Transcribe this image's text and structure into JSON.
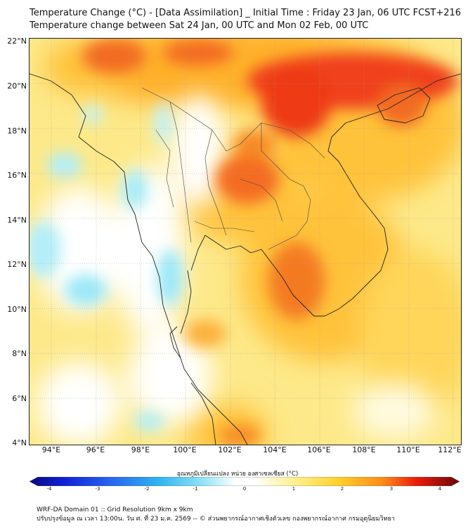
{
  "header": {
    "title_line1": "Temperature Change (°C) - [Data Assimilation] _ Initial Time : Friday 23 Jan, 06 UTC FCST+216",
    "title_line2": "Temperature change between Sat 24 Jan, 00 UTC and Mon 02 Feb, 00 UTC"
  },
  "map": {
    "lat_labels": [
      "22°N",
      "20°N",
      "18°N",
      "16°N",
      "14°N",
      "12°N",
      "10°N",
      "8°N",
      "6°N",
      "4°N"
    ],
    "lon_labels": [
      "94°E",
      "96°E",
      "98°E",
      "100°E",
      "102°E",
      "104°E",
      "106°E",
      "108°E",
      "110°E",
      "112°E"
    ],
    "colors": {
      "background": "#fdf6c8",
      "cool": "#7fe0f5",
      "neutral": "#ffffff",
      "warm": "#ffd23c",
      "hot": "#ff8a1e",
      "very_hot": "#e81c0c",
      "border": "#333333"
    }
  },
  "colorbar": {
    "title": "อุณหภูมิเปลี่ยนแปลง หน่วย องศาเซลเซียส (°C)",
    "ticks": [
      "-4",
      "-3",
      "-2",
      "-1",
      "0",
      "1",
      "2",
      "3",
      "4"
    ],
    "range": [
      -4,
      4
    ]
  },
  "footer": {
    "line1": "WRF-DA Domain 01 :: Grid Resolution 9km x 9km",
    "line2": "ปรับปรุงข้อมูล ณ เวลา 13:00น. วัน ศ. ที่ 23 ม.ค. 2569 -- © ส่วนพยากรณ์อากาศเชิงตัวเลข กองพยากรณ์อากาศ กรมอุตุนิยมวิทยา"
  }
}
